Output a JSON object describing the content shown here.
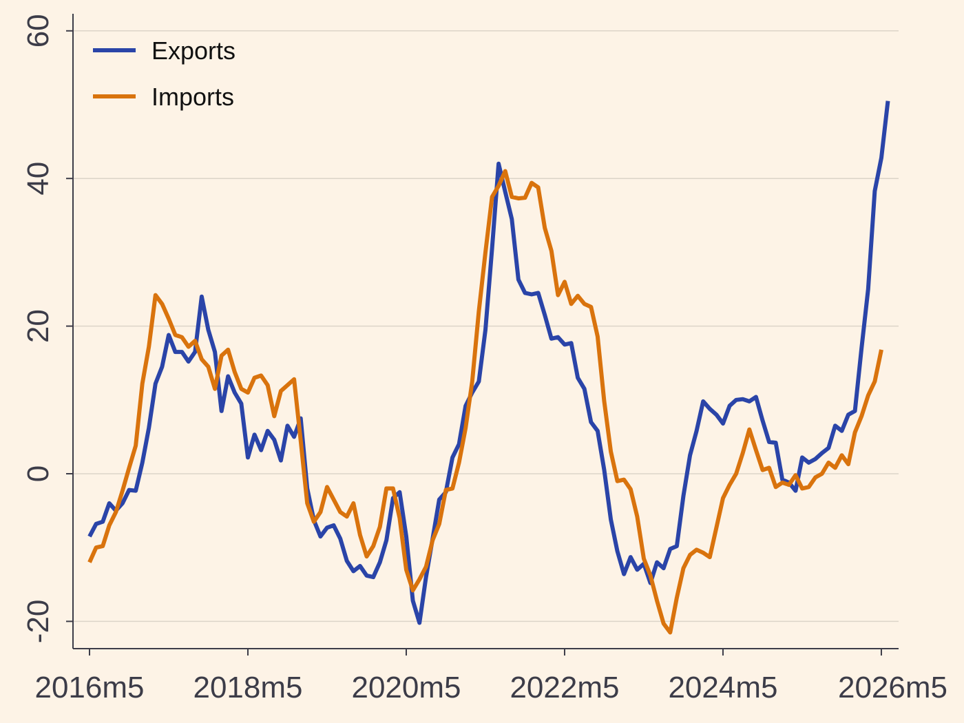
{
  "chart_data": {
    "type": "line",
    "title": "",
    "xlabel": "",
    "ylabel": "",
    "x_ticks": [
      "2016m5",
      "2018m5",
      "2020m5",
      "2022m5",
      "2024m5",
      "2026m5"
    ],
    "y_ticks": [
      "-20",
      "0",
      "20",
      "40",
      "60"
    ],
    "ylim": [
      -23,
      63
    ],
    "grid": "horizontal",
    "legend_position": "top-left",
    "x_start": "2016m5",
    "x_step": "1 month",
    "series": [
      {
        "name": "Exports",
        "color": "#2a44a8",
        "values": [
          -8.5,
          -6.8,
          -6.5,
          -4.0,
          -5.0,
          -4.0,
          -2.2,
          -2.3,
          1.5,
          6.2,
          12.2,
          14.5,
          18.8,
          16.5,
          16.5,
          15.2,
          16.5,
          24.0,
          19.5,
          16.5,
          8.5,
          13.2,
          11.0,
          9.5,
          2.2,
          5.3,
          3.2,
          5.8,
          4.6,
          1.8,
          6.5,
          5.0,
          7.5,
          -2.0,
          -6.3,
          -8.5,
          -7.3,
          -7.0,
          -8.8,
          -11.8,
          -13.2,
          -12.5,
          -13.8,
          -14.0,
          -12.0,
          -9.0,
          -3.3,
          -2.5,
          -8.5,
          -17.2,
          -20.2,
          -14.0,
          -8.8,
          -3.5,
          -2.5,
          2.2,
          4.0,
          9.2,
          11.0,
          12.5,
          19.5,
          30.5,
          42.0,
          38.2,
          34.5,
          26.3,
          24.5,
          24.3,
          24.5,
          21.5,
          18.3,
          18.5,
          17.5,
          17.7,
          13.0,
          11.5,
          7.0,
          5.8,
          0.5,
          -6.2,
          -10.5,
          -13.6,
          -11.3,
          -13.0,
          -12.2,
          -14.8,
          -12.0,
          -12.8,
          -10.2,
          -9.8,
          -3.0,
          2.5,
          5.8,
          9.8,
          8.8,
          8.0,
          6.8,
          9.2,
          10.0,
          10.1,
          9.8,
          10.4,
          7.2,
          4.3,
          4.2,
          -0.8,
          -1.2,
          -2.3,
          2.2,
          1.5,
          2.0,
          2.8,
          3.5,
          6.5,
          5.8,
          8.0,
          8.5,
          17.0,
          25.0,
          38.3,
          42.8,
          50.5
        ]
      },
      {
        "name": "Imports",
        "color": "#d9730d",
        "values": [
          -12.0,
          -10.0,
          -9.8,
          -7.0,
          -5.2,
          -2.3,
          0.8,
          3.8,
          12.2,
          17.2,
          24.2,
          23.0,
          21.0,
          18.8,
          18.5,
          17.2,
          18.0,
          15.5,
          14.5,
          11.5,
          16.0,
          16.8,
          13.8,
          11.5,
          11.0,
          13.0,
          13.3,
          12.0,
          7.8,
          11.2,
          12.0,
          12.8,
          4.5,
          -4.0,
          -6.5,
          -5.2,
          -1.8,
          -3.5,
          -5.2,
          -5.8,
          -4.0,
          -8.3,
          -11.2,
          -9.8,
          -7.2,
          -2.0,
          -2.0,
          -6.0,
          -13.0,
          -15.8,
          -14.3,
          -12.6,
          -9.0,
          -6.8,
          -2.2,
          -2.0,
          1.5,
          6.2,
          12.5,
          22.0,
          30.0,
          37.5,
          39.0,
          41.0,
          37.5,
          37.3,
          37.4,
          39.4,
          38.8,
          33.3,
          30.2,
          24.2,
          26.0,
          23.0,
          24.1,
          23.0,
          22.6,
          18.6,
          9.8,
          3.0,
          -1.0,
          -0.8,
          -2.1,
          -5.8,
          -11.5,
          -13.8,
          -17.2,
          -20.3,
          -21.5,
          -16.8,
          -12.8,
          -11.0,
          -10.3,
          -10.7,
          -11.3,
          -7.3,
          -3.3,
          -1.5,
          0.0,
          2.8,
          6.0,
          3.2,
          0.5,
          0.8,
          -1.8,
          -1.2,
          -1.5,
          -0.2,
          -2.0,
          -1.8,
          -0.5,
          0.0,
          1.5,
          0.8,
          2.5,
          1.3,
          5.6,
          7.8,
          10.6,
          12.5,
          16.8
        ]
      }
    ]
  }
}
